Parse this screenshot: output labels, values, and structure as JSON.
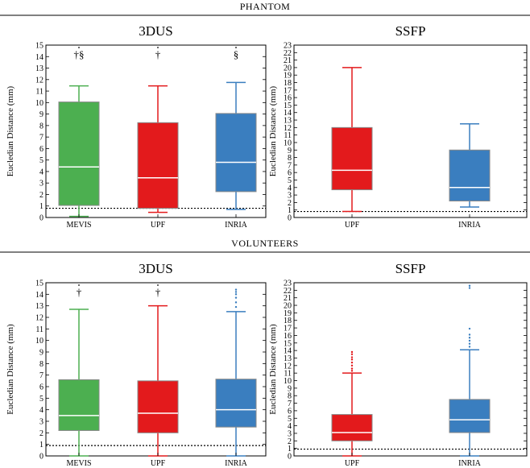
{
  "sections": [
    {
      "title": "PHANTOM"
    },
    {
      "title": "VOLUNTEERS"
    }
  ],
  "colors": {
    "MEVIS": "#4caf50",
    "UPF": "#e31a1c",
    "INRIA": "#3a7ebf"
  },
  "chart_data": [
    {
      "type": "box",
      "title": "3DUS",
      "ylabel": "Eucledian Distance (mm)",
      "ylim": [
        0,
        15
      ],
      "yticks": [
        0,
        1,
        2,
        3,
        4,
        5,
        6,
        7,
        8,
        9,
        10,
        11,
        12,
        13,
        14,
        15
      ],
      "reference_line": 0.8,
      "categories": [
        "MEVIS",
        "UPF",
        "INRIA"
      ],
      "boxes": [
        {
          "name": "MEVIS",
          "whisker_low": 0.1,
          "q1": 1.05,
          "median": 4.4,
          "q3": 10.05,
          "whisker_high": 11.45,
          "outliers": [],
          "marker": "†§"
        },
        {
          "name": "UPF",
          "whisker_low": 0.45,
          "q1": 0.8,
          "median": 3.45,
          "q3": 8.25,
          "whisker_high": 11.45,
          "outliers": [],
          "marker": "†"
        },
        {
          "name": "INRIA",
          "whisker_low": 0.7,
          "q1": 2.25,
          "median": 4.8,
          "q3": 9.05,
          "whisker_high": 11.75,
          "outliers": [],
          "marker": "§"
        }
      ]
    },
    {
      "type": "box",
      "title": "SSFP",
      "ylabel": "Eucledian Distance (mm)",
      "ylim": [
        0,
        23
      ],
      "yticks": [
        0,
        1,
        2,
        3,
        4,
        5,
        6,
        7,
        8,
        9,
        10,
        11,
        12,
        13,
        14,
        15,
        16,
        17,
        18,
        19,
        20,
        21,
        22,
        23
      ],
      "reference_line": 0.8,
      "categories": [
        "UPF",
        "INRIA"
      ],
      "boxes": [
        {
          "name": "UPF",
          "whisker_low": 0.8,
          "q1": 3.7,
          "median": 6.3,
          "q3": 12.0,
          "whisker_high": 20.0,
          "outliers": [],
          "marker": ""
        },
        {
          "name": "INRIA",
          "whisker_low": 1.4,
          "q1": 2.2,
          "median": 4.0,
          "q3": 9.0,
          "whisker_high": 12.5,
          "outliers": [],
          "marker": ""
        }
      ]
    },
    {
      "type": "box",
      "title": "3DUS",
      "ylabel": "Eucledian Distance (mm)",
      "ylim": [
        0,
        15
      ],
      "yticks": [
        0,
        1,
        2,
        3,
        4,
        5,
        6,
        7,
        8,
        9,
        10,
        11,
        12,
        13,
        14,
        15
      ],
      "reference_line": 0.9,
      "categories": [
        "MEVIS",
        "UPF",
        "INRIA"
      ],
      "boxes": [
        {
          "name": "MEVIS",
          "whisker_low": 0.0,
          "q1": 2.2,
          "median": 3.5,
          "q3": 6.6,
          "whisker_high": 12.7,
          "outliers": [],
          "marker": "†"
        },
        {
          "name": "UPF",
          "whisker_low": 0.0,
          "q1": 2.0,
          "median": 3.7,
          "q3": 6.5,
          "whisker_high": 13.0,
          "outliers": [],
          "marker": "†"
        },
        {
          "name": "INRIA",
          "whisker_low": 0.0,
          "q1": 2.5,
          "median": 4.0,
          "q3": 6.65,
          "whisker_high": 12.5,
          "outliers": [
            12.9,
            13.3,
            13.7,
            14.0,
            14.2,
            14.4
          ],
          "marker": ""
        }
      ]
    },
    {
      "type": "box",
      "title": "SSFP",
      "ylabel": "Eucledian Distance (mm)",
      "ylim": [
        0,
        23
      ],
      "yticks": [
        0,
        1,
        2,
        3,
        4,
        5,
        6,
        7,
        8,
        9,
        10,
        11,
        12,
        13,
        14,
        15,
        16,
        17,
        18,
        19,
        20,
        21,
        22,
        23
      ],
      "reference_line": 0.9,
      "categories": [
        "UPF",
        "INRIA"
      ],
      "boxes": [
        {
          "name": "UPF",
          "whisker_low": 0.0,
          "q1": 2.0,
          "median": 3.1,
          "q3": 5.5,
          "whisker_high": 11.0,
          "outliers": [
            11.3,
            11.6,
            12.0,
            12.4,
            12.8,
            13.1,
            13.5,
            13.8
          ],
          "marker": ""
        },
        {
          "name": "INRIA",
          "whisker_low": 0.0,
          "q1": 3.1,
          "median": 4.8,
          "q3": 7.5,
          "whisker_high": 14.1,
          "outliers": [
            14.5,
            14.9,
            15.3,
            15.7,
            16.1,
            16.9,
            22.3,
            22.6
          ],
          "marker": ""
        }
      ]
    }
  ]
}
